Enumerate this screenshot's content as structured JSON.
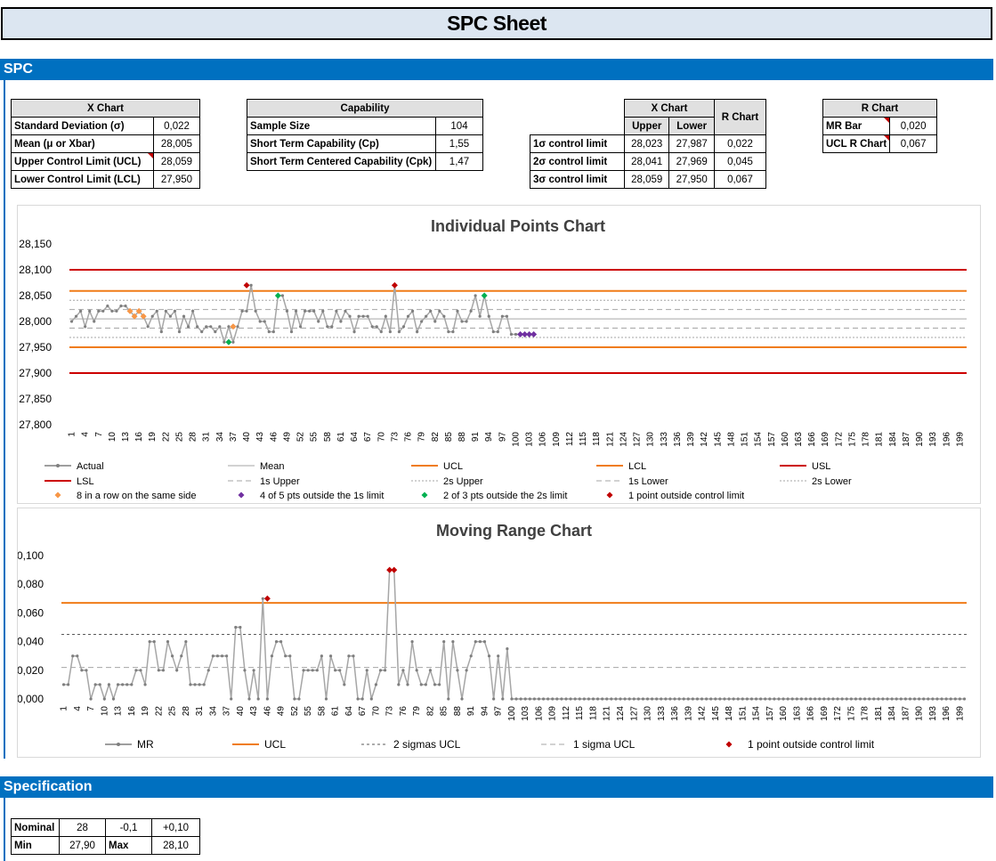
{
  "title": "SPC Sheet",
  "sections": {
    "spc": "SPC",
    "specification": "Specification"
  },
  "xchart_table": {
    "header": "X Chart",
    "rows": [
      {
        "label": "Standard Deviation (σ)",
        "value": "0,022"
      },
      {
        "label": "Mean (μ or Xbar)",
        "value": "28,005"
      },
      {
        "label": "Upper Control Limit (UCL)",
        "value": "28,059"
      },
      {
        "label": "Lower Control Limit (LCL)",
        "value": "27,950"
      }
    ]
  },
  "capability_table": {
    "header": "Capability",
    "rows": [
      {
        "label": "Sample Size",
        "value": "104"
      },
      {
        "label": "Short Term Capability (Cp)",
        "value": "1,55"
      },
      {
        "label": "Short Term Centered Capability (Cpk)",
        "value": "1,47"
      }
    ]
  },
  "limits_table": {
    "header_x": "X Chart",
    "header_r": "R Chart",
    "col_upper": "Upper",
    "col_lower": "Lower",
    "rows": [
      {
        "label": "1σ control limit",
        "upper": "28,023",
        "lower": "27,987",
        "r": "0,022"
      },
      {
        "label": "2σ control limit",
        "upper": "28,041",
        "lower": "27,969",
        "r": "0,045"
      },
      {
        "label": "3σ control limit",
        "upper": "28,059",
        "lower": "27,950",
        "r": "0,067"
      }
    ]
  },
  "rchart_table": {
    "header": "R Chart",
    "rows": [
      {
        "label": "MR Bar",
        "value": "0,020"
      },
      {
        "label": "UCL R Chart",
        "value": "0,067"
      }
    ]
  },
  "spec_table": {
    "nominal_label": "Nominal",
    "nominal": "28",
    "tol_minus": "-0,1",
    "tol_plus": "+0,10",
    "min_label": "Min",
    "min": "27,90",
    "max_label": "Max",
    "max": "28,10"
  },
  "colors": {
    "section_bar": "#0070c0",
    "title_bg": "#dce6f1",
    "ucl": "#f07c18",
    "usl": "#cc0000",
    "actual": "#a6a6a6",
    "eight_in_row": "#f79646",
    "four_of_five": "#7030a0",
    "two_of_three": "#00b050",
    "one_point": "#c00000"
  },
  "chart_data": [
    {
      "type": "line",
      "title": "Individual Points Chart",
      "ylim": [
        27.8,
        28.15
      ],
      "yticks": [
        "27,800",
        "27,850",
        "27,900",
        "27,950",
        "28,000",
        "28,050",
        "28,100",
        "28,150"
      ],
      "n_points": 200,
      "series": [
        {
          "name": "Actual",
          "values": [
            28.0,
            28.01,
            28.02,
            27.99,
            28.02,
            28.0,
            28.02,
            28.02,
            28.03,
            28.02,
            28.02,
            28.03,
            28.03,
            28.02,
            28.01,
            28.02,
            28.01,
            27.99,
            28.01,
            28.02,
            27.98,
            28.02,
            28.01,
            28.02,
            27.98,
            28.01,
            27.99,
            28.02,
            27.99,
            27.98,
            27.99,
            27.99,
            27.98,
            27.99,
            27.96,
            27.99,
            27.96,
            27.99,
            28.02,
            28.02,
            28.07,
            28.02,
            28.0,
            28.0,
            27.98,
            27.98,
            28.05,
            28.05,
            28.02,
            27.98,
            28.02,
            27.99,
            28.02,
            28.02,
            28.02,
            28.0,
            28.02,
            27.99,
            27.99,
            28.02,
            28.0,
            28.02,
            28.01,
            27.98,
            28.01,
            28.01,
            28.01,
            27.99,
            27.99,
            27.98,
            28.01,
            27.98,
            28.07,
            27.98,
            27.99,
            28.01,
            28.02,
            27.98,
            28.0,
            28.01,
            28.02,
            28.0,
            28.02,
            28.01,
            27.98,
            27.98,
            28.02,
            28.0,
            28.0,
            28.02,
            28.05,
            28.01,
            28.05,
            28.01,
            27.98,
            27.98,
            28.01,
            28.01,
            27.975,
            27.975,
            27.975,
            27.975,
            27.975,
            27.975
          ]
        },
        {
          "name": "Mean",
          "value": 28.005
        },
        {
          "name": "UCL",
          "value": 28.059
        },
        {
          "name": "LCL",
          "value": 27.95
        },
        {
          "name": "USL",
          "value": 28.1
        },
        {
          "name": "LSL",
          "value": 27.9
        },
        {
          "name": "1s Upper",
          "value": 28.023
        },
        {
          "name": "2s Upper",
          "value": 28.041
        },
        {
          "name": "1s Lower",
          "value": 27.987
        },
        {
          "name": "2s Lower",
          "value": 27.969
        }
      ],
      "markers": [
        {
          "name": "8 in a row on the same side",
          "points": [
            [
              14,
              28.02
            ],
            [
              15,
              28.01
            ],
            [
              16,
              28.02
            ],
            [
              17,
              28.01
            ],
            [
              37,
              27.99
            ]
          ]
        },
        {
          "name": "4 of 5 pts outside the 1s limit",
          "points": [
            [
              101,
              27.975
            ],
            [
              102,
              27.975
            ],
            [
              103,
              27.975
            ],
            [
              104,
              27.975
            ]
          ]
        },
        {
          "name": "2 of 3 pts outside the 2s limit",
          "points": [
            [
              36,
              27.96
            ],
            [
              47,
              28.05
            ],
            [
              93,
              28.05
            ]
          ]
        },
        {
          "name": "1 point outside control limit",
          "points": [
            [
              40,
              28.07
            ],
            [
              73,
              28.07
            ]
          ]
        }
      ],
      "legend": [
        "Actual",
        "Mean",
        "UCL",
        "LCL",
        "USL",
        "LSL",
        "1s Upper",
        "2s Upper",
        "1s Lower",
        "2s Lower",
        "8 in a row on the same side",
        "4 of 5 pts outside the 1s limit",
        "2 of 3 pts outside the 2s limit",
        "1 point outside control limit"
      ]
    },
    {
      "type": "line",
      "title": "Moving Range Chart",
      "ylim": [
        0,
        0.1
      ],
      "yticks": [
        "0,000",
        "0,020",
        "0,040",
        "0,060",
        "0,080",
        "0,100"
      ],
      "n_points": 200,
      "series": [
        {
          "name": "MR",
          "values": [
            0.01,
            0.01,
            0.03,
            0.03,
            0.02,
            0.02,
            0.0,
            0.01,
            0.01,
            0.0,
            0.01,
            0.0,
            0.01,
            0.01,
            0.01,
            0.01,
            0.02,
            0.02,
            0.01,
            0.04,
            0.04,
            0.02,
            0.02,
            0.04,
            0.03,
            0.02,
            0.03,
            0.04,
            0.01,
            0.01,
            0.01,
            0.01,
            0.02,
            0.03,
            0.03,
            0.03,
            0.03,
            0.0,
            0.05,
            0.05,
            0.02,
            0.0,
            0.02,
            0.0,
            0.07,
            0.0,
            0.03,
            0.04,
            0.04,
            0.03,
            0.03,
            0.0,
            0.0,
            0.02,
            0.02,
            0.02,
            0.02,
            0.03,
            0.0,
            0.03,
            0.02,
            0.02,
            0.01,
            0.03,
            0.03,
            0.0,
            0.0,
            0.02,
            0.0,
            0.01,
            0.02,
            0.02,
            0.09,
            0.09,
            0.01,
            0.02,
            0.01,
            0.04,
            0.02,
            0.01,
            0.01,
            0.02,
            0.01,
            0.01,
            0.04,
            0.0,
            0.04,
            0.02,
            0.0,
            0.02,
            0.03,
            0.04,
            0.04,
            0.04,
            0.03,
            0.0,
            0.03,
            0.0,
            0.035,
            0.0,
            0.0,
            0.0,
            0.0,
            0.0
          ]
        },
        {
          "name": "UCL",
          "value": 0.067
        },
        {
          "name": "2 sigmas UCL",
          "value": 0.045
        },
        {
          "name": "1 sigma UCL",
          "value": 0.022
        }
      ],
      "markers": [
        {
          "name": "1 point outside control limit",
          "points": [
            [
              46,
              0.07
            ],
            [
              73,
              0.09
            ],
            [
              74,
              0.09
            ]
          ]
        }
      ],
      "legend": [
        "MR",
        "UCL",
        "2 sigmas UCL",
        "1 sigma UCL",
        "1 point outside control limit"
      ]
    }
  ]
}
